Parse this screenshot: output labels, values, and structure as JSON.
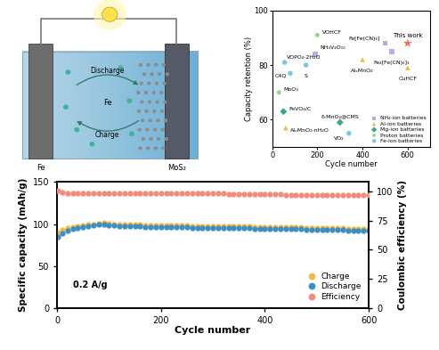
{
  "diagram": {
    "arrow_labels": [
      "Discharge",
      "Charge"
    ],
    "ion_label": "Fe",
    "anode": "Fe",
    "cathode": "MoS₂"
  },
  "chart_data": [
    {
      "type": "scatter",
      "x_label": "Cycle number",
      "y_label": "Capacity retention (%)",
      "xlim": [
        0,
        700
      ],
      "xticks": [
        0,
        200,
        400,
        600
      ],
      "ylim": [
        50,
        100
      ],
      "yticks": [
        60,
        80,
        100
      ],
      "legend": "lower right",
      "series": [
        {
          "name": "NH₄-ion batteries",
          "color": "#b3aee6",
          "marker": "square",
          "points": [
            {
              "label": "NH₄V₄O₁₀",
              "x": 190,
              "y": 84
            },
            {
              "label": "Fe[Fe(CN)₆]",
              "x": 500,
              "y": 88
            },
            {
              "label": "Fe₄[Fe(CN)₆]₃",
              "x": 530,
              "y": 85
            }
          ]
        },
        {
          "name": "Al-ion batteries",
          "color": "#f5b942",
          "marker": "triangle",
          "points": [
            {
              "label": "AlₓMnO₂·nH₂O",
              "x": 60,
              "y": 57
            },
            {
              "label": "AlₓMnO₂",
              "x": 400,
              "y": 82
            },
            {
              "label": "CuHCF",
              "x": 600,
              "y": 79
            }
          ]
        },
        {
          "name": "Mg-ion batteries",
          "color": "#36a68c",
          "marker": "diamond",
          "points": [
            {
              "label": "FeVO₄/C",
              "x": 50,
              "y": 63
            },
            {
              "label": "δ-MnO₂@CMS",
              "x": 300,
              "y": 59
            }
          ]
        },
        {
          "name": "Proton batteries",
          "color": "#8fd48a",
          "marker": "pentagon",
          "points": [
            {
              "label": "MoO₃",
              "x": 30,
              "y": 70
            },
            {
              "label": "VOHCF",
              "x": 200,
              "y": 91
            }
          ]
        },
        {
          "name": "Fe-ion batteries",
          "color": "#7ec8e3",
          "marker": "circle",
          "points": [
            {
              "label": "VOPO₄·2H₂O",
              "x": 55,
              "y": 81
            },
            {
              "label": "C4Q",
              "x": 80,
              "y": 77
            },
            {
              "label": "S",
              "x": 150,
              "y": 80
            },
            {
              "label": "VO₂",
              "x": 340,
              "y": 55
            }
          ]
        }
      ],
      "highlight": {
        "label": "This work",
        "x": 600,
        "y": 88,
        "color": "#f26b5b",
        "marker": "star"
      }
    },
    {
      "type": "line",
      "x_label": "Cycle number",
      "y_label": "Specific capacity (mAh/g)",
      "y2_label": "Coulombic efficiency (%)",
      "annotation": "0.2 A/g",
      "xlim": [
        0,
        600
      ],
      "xticks": [
        0,
        200,
        400,
        600
      ],
      "ylim": [
        0,
        150
      ],
      "yticks": [
        0,
        50,
        100,
        150
      ],
      "y2lim": [
        0,
        108
      ],
      "y2ticks": [
        0,
        25,
        50,
        75,
        100
      ],
      "legend": "lower right",
      "x": [
        1,
        10,
        20,
        30,
        40,
        50,
        60,
        70,
        80,
        90,
        100,
        110,
        120,
        130,
        140,
        150,
        160,
        170,
        180,
        190,
        200,
        210,
        220,
        230,
        240,
        250,
        260,
        270,
        280,
        290,
        300,
        310,
        320,
        330,
        340,
        350,
        360,
        370,
        380,
        390,
        400,
        410,
        420,
        430,
        440,
        450,
        460,
        470,
        480,
        490,
        500,
        510,
        520,
        530,
        540,
        550,
        560,
        570,
        580,
        590,
        600
      ],
      "series": [
        {
          "name": "Charge",
          "color": "#f5b942",
          "marker": "circle",
          "line_style": "none",
          "values": [
            90,
            93,
            95,
            96.5,
            97.5,
            98.5,
            99.5,
            100,
            101,
            101.5,
            100.5,
            100,
            99.5,
            99.5,
            99,
            99,
            99,
            98.5,
            98.5,
            98.5,
            98.5,
            98,
            98,
            98,
            98,
            98,
            97.5,
            97.5,
            97.5,
            97.5,
            97.5,
            97.5,
            97,
            97,
            97,
            97,
            97,
            97,
            96.5,
            96.5,
            96.5,
            96.5,
            96.5,
            96,
            96,
            96,
            96,
            96,
            95.5,
            95.5,
            95.5,
            95.5,
            95,
            95,
            95,
            95,
            94.5,
            94.5,
            94.5,
            94,
            94
          ]
        },
        {
          "name": "Discharge",
          "color": "#3a8fc6",
          "marker": "circle",
          "line_style": "none",
          "values": [
            85,
            89,
            92,
            94,
            95.5,
            96.5,
            97.5,
            98,
            99,
            99.5,
            98.5,
            98,
            97.5,
            97.5,
            97,
            97,
            97,
            96.5,
            96.5,
            96.5,
            96.5,
            96,
            96,
            96,
            96,
            96,
            95.5,
            95.5,
            95.5,
            95.5,
            95.5,
            95.5,
            95,
            95,
            95,
            95,
            95,
            95,
            94.5,
            94.5,
            94.5,
            94.5,
            94.5,
            94,
            94,
            94,
            94,
            94,
            93.5,
            93.5,
            93.5,
            93.5,
            93,
            93,
            93,
            93,
            92.5,
            92.5,
            92.5,
            92,
            92
          ]
        },
        {
          "name": "Efficiency",
          "color": "#f28b7a",
          "marker": "circle",
          "line_style": "none",
          "axis": "y2",
          "values": [
            101,
            99,
            98.5,
            98.5,
            98.5,
            98.5,
            98.5,
            98.5,
            98.5,
            98.5,
            98.5,
            98.5,
            98.5,
            98.5,
            98.5,
            98.5,
            98.5,
            98.5,
            98.5,
            98,
            98,
            98,
            98,
            98,
            98,
            98,
            98,
            98,
            98,
            98,
            98,
            98,
            98,
            97.5,
            97.5,
            97.5,
            97.5,
            97.5,
            97.5,
            97.5,
            97.5,
            97.5,
            97.5,
            97.5,
            97,
            97,
            97,
            97,
            97,
            97,
            97,
            97,
            97,
            97,
            96.5,
            96.5,
            96.5,
            96.5,
            96.5,
            96.5,
            96.5
          ]
        }
      ]
    }
  ]
}
